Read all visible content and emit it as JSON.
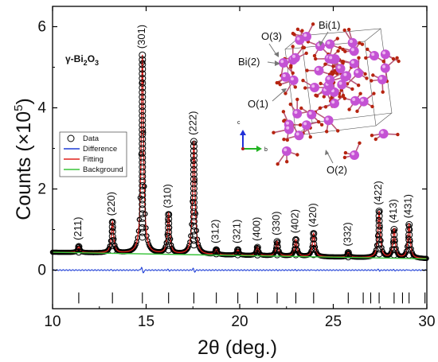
{
  "chart_data": {
    "type": "line",
    "xlabel_main": "2θ",
    "xlabel_unit": " (deg.)",
    "ylabel_main": "Counts (×10",
    "ylabel_exp": "5",
    "ylabel_close": ")",
    "xlim": [
      10,
      30
    ],
    "ylim": [
      -0.95,
      6.5
    ],
    "x_ticks": [
      10,
      15,
      20,
      25,
      30
    ],
    "y_ticks": [
      0,
      2,
      4,
      6
    ],
    "phase_label": {
      "main": "γ-Bi",
      "sub1": "2",
      "mid": "O",
      "sub2": "3"
    },
    "legend": [
      {
        "label": "Data",
        "kind": "circle",
        "color": "#000000"
      },
      {
        "label": "Difference",
        "kind": "line",
        "color": "#1f3fd6"
      },
      {
        "label": "Fitting",
        "kind": "line",
        "color": "#e0201c"
      },
      {
        "label": "Background",
        "kind": "line",
        "color": "#39c43a"
      }
    ],
    "background": {
      "x": [
        10,
        30
      ],
      "y": [
        0.44,
        0.28
      ]
    },
    "peaks": [
      {
        "x": 11.4,
        "h": 0.58,
        "hkl": "(211)"
      },
      {
        "x": 13.2,
        "h": 1.18,
        "hkl": "(220)"
      },
      {
        "x": 14.8,
        "h": 5.3,
        "hkl": "(301)"
      },
      {
        "x": 16.2,
        "h": 1.37,
        "hkl": "(310)"
      },
      {
        "x": 17.55,
        "h": 3.17,
        "hkl": "(222)"
      },
      {
        "x": 18.75,
        "h": 0.5,
        "hkl": "(312)"
      },
      {
        "x": 19.9,
        "h": 0.5,
        "hkl": "(321)"
      },
      {
        "x": 20.95,
        "h": 0.56,
        "hkl": "(400)"
      },
      {
        "x": 22.0,
        "h": 0.7,
        "hkl": "(330)"
      },
      {
        "x": 23.0,
        "h": 0.75,
        "hkl": "(402)"
      },
      {
        "x": 23.95,
        "h": 0.9,
        "hkl": "(420)"
      },
      {
        "x": 25.8,
        "h": 0.43,
        "hkl": "(332)"
      },
      {
        "x": 27.45,
        "h": 1.45,
        "hkl": "(422)"
      },
      {
        "x": 28.25,
        "h": 1.0,
        "hkl": "(413)"
      },
      {
        "x": 29.05,
        "h": 1.12,
        "hkl": "(431)"
      }
    ],
    "extra_bragg_ticks": [
      26.6,
      27.0,
      28.7,
      29.9
    ],
    "colors": {
      "difference": "#1f3fd6",
      "fitting": "#e0201c",
      "background": "#39c43a",
      "data": "#000000"
    }
  },
  "inset": {
    "atom_labels": [
      "Bi(1)",
      "O(3)",
      "Bi(2)",
      "O(1)",
      "O(2)"
    ],
    "axis_labels": {
      "c": "c",
      "b": "b"
    },
    "colors": {
      "bi": "#c452d4",
      "o": "#b62410",
      "bond": "#b85a7a",
      "cell": "#555555"
    }
  }
}
